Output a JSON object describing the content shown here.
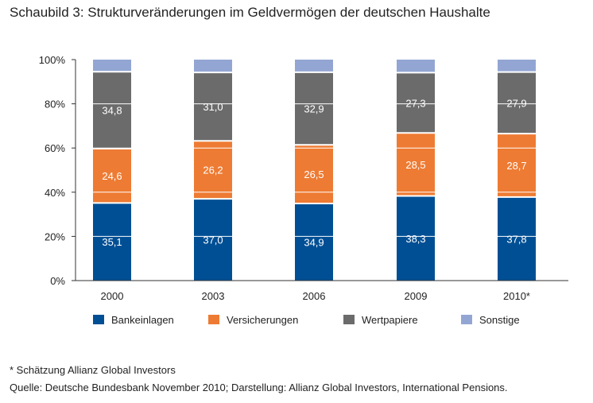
{
  "title": "Schaubild 3: Strukturveränderungen im Geldvermögen der deutschen Haushalte",
  "footnote": "* Schätzung Allianz Global Investors",
  "source": "Quelle: Deutsche Bundesbank November 2010;  Darstellung: Allianz Global Investors, International Pensions.",
  "colors": {
    "Bankeinlagen": "#004f94",
    "Versicherungen": "#ee7b33",
    "Wertpapiere": "#6b6b6b",
    "Sonstige": "#93a6d3"
  },
  "chart_data": {
    "type": "bar",
    "stacked": true,
    "categories": [
      "2000",
      "2003",
      "2006",
      "2009",
      "2010*"
    ],
    "series": [
      {
        "name": "Bankeinlagen",
        "values": [
          35.1,
          37.0,
          34.9,
          38.3,
          37.8
        ],
        "labels": [
          "35,1",
          "37,0",
          "34,9",
          "38,3",
          "37,8"
        ]
      },
      {
        "name": "Versicherungen",
        "values": [
          24.6,
          26.2,
          26.5,
          28.5,
          28.7
        ],
        "labels": [
          "24,6",
          "26,2",
          "26,5",
          "28,5",
          "28,7"
        ]
      },
      {
        "name": "Wertpapiere",
        "values": [
          34.8,
          31.0,
          32.9,
          27.3,
          27.9
        ],
        "labels": [
          "34,8",
          "31,0",
          "32,9",
          "27,3",
          "27,9"
        ]
      },
      {
        "name": "Sonstige",
        "values": [
          5.5,
          5.8,
          5.7,
          5.9,
          5.6
        ]
      }
    ],
    "yticks": [
      "0%",
      "20%",
      "40%",
      "60%",
      "80%",
      "100%"
    ],
    "ylim": [
      0,
      100
    ],
    "grid": "white lines at 20% steps across bars",
    "legend": "bottom"
  }
}
